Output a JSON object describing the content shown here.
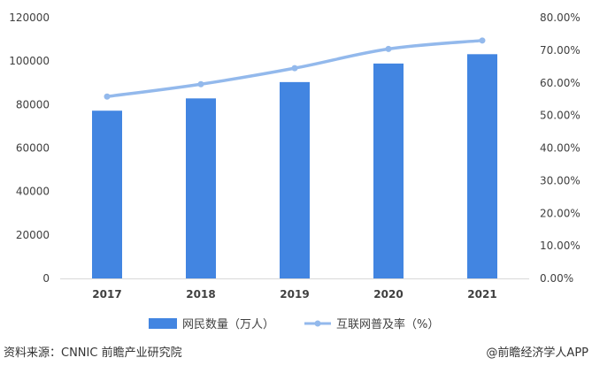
{
  "chart_data": {
    "type": "bar+line",
    "categories": [
      "2017",
      "2018",
      "2019",
      "2020",
      "2021"
    ],
    "series": [
      {
        "name": "网民数量（万人）",
        "type": "bar",
        "axis": "left",
        "values": [
          77198,
          82851,
          90359,
          98899,
          103195
        ]
      },
      {
        "name": "互联网普及率（%）",
        "type": "line",
        "axis": "right",
        "values": [
          55.8,
          59.6,
          64.5,
          70.4,
          73.0
        ]
      }
    ],
    "y_left": {
      "ylim": [
        0,
        120000
      ],
      "ticks": [
        "0",
        "20000",
        "40000",
        "60000",
        "80000",
        "100000",
        "120000"
      ]
    },
    "y_right": {
      "ylim": [
        0,
        80
      ],
      "ticks": [
        "0.00%",
        "10.00%",
        "20.00%",
        "30.00%",
        "40.00%",
        "50.00%",
        "60.00%",
        "70.00%",
        "80.00%"
      ]
    },
    "grid": false,
    "legend_position": "bottom",
    "colors": {
      "bar": "#4285e1",
      "line": "#93b9ec",
      "axis": "#d9d9d9",
      "text": "#404040"
    }
  },
  "footer": {
    "source": "资料来源：CNNIC 前瞻产业研究院",
    "credit": "@前瞻经济学人APP"
  }
}
